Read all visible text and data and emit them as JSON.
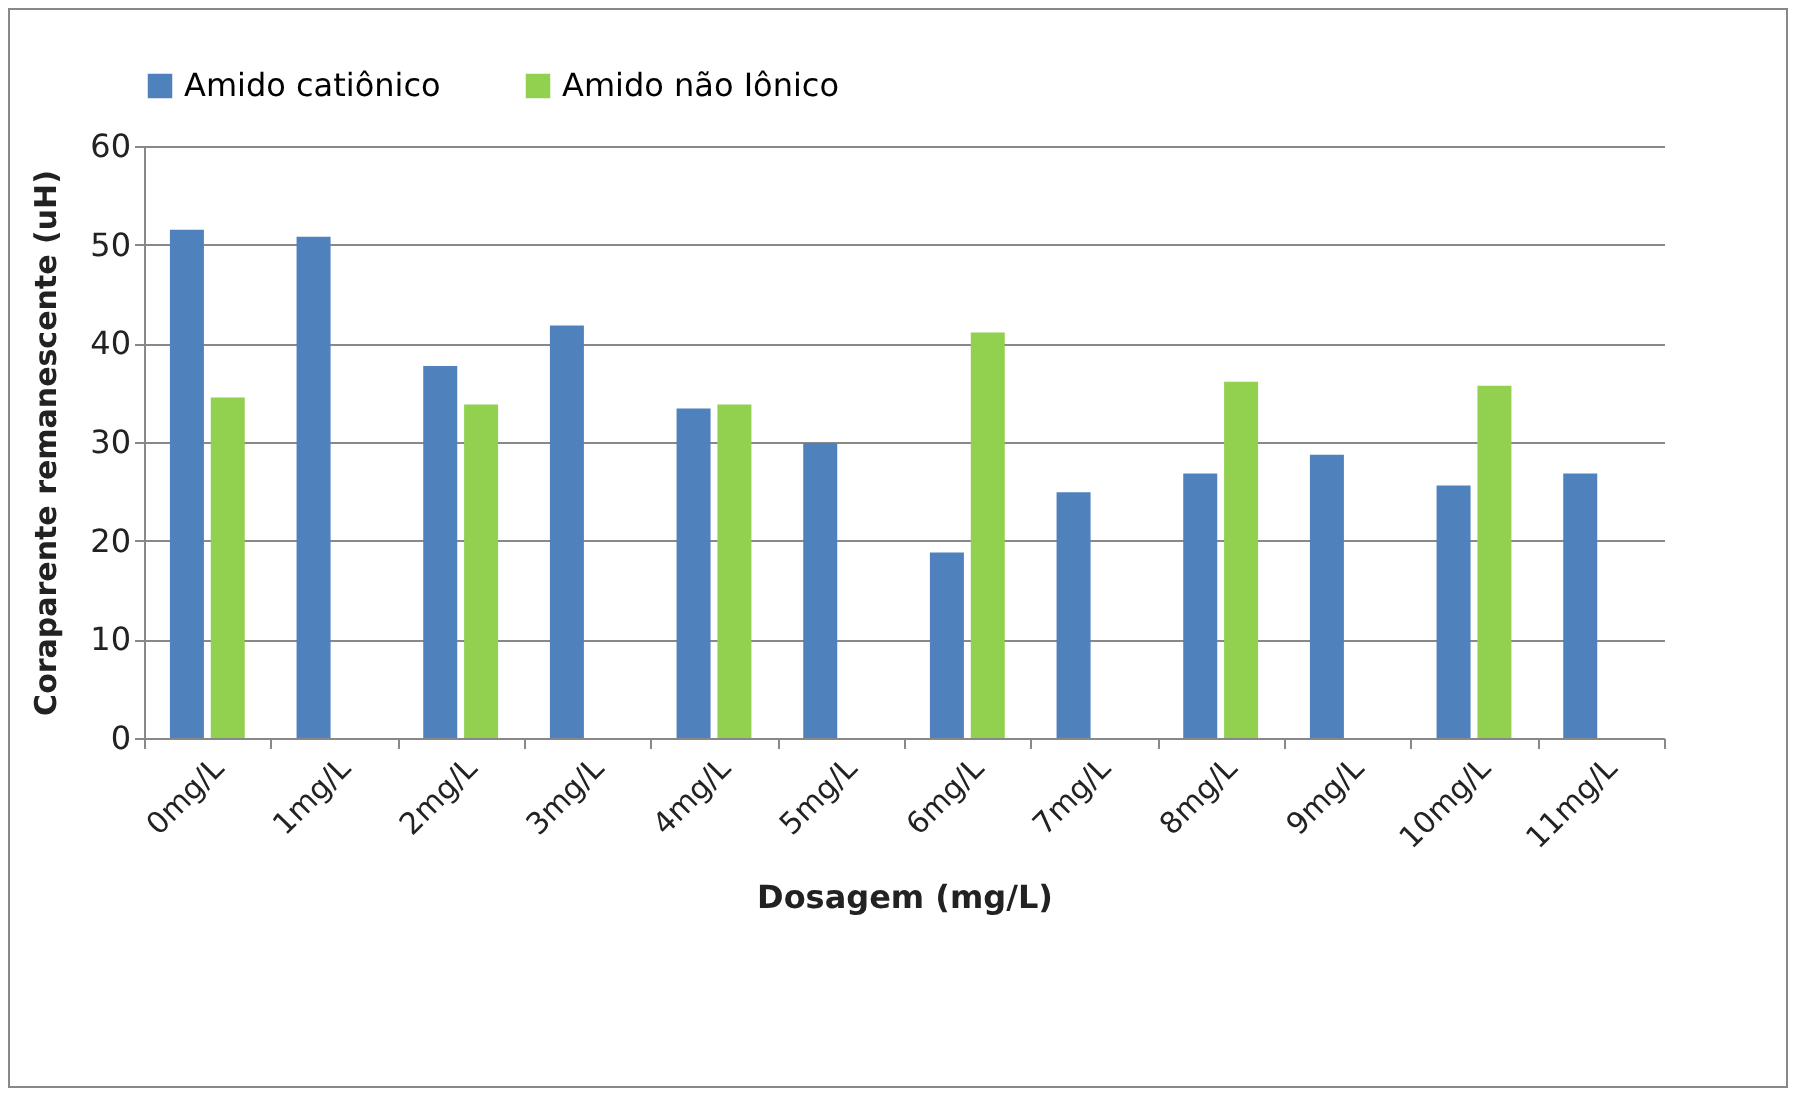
{
  "chart_data": {
    "type": "bar",
    "xlabel": "Dosagem (mg/L)",
    "ylabel": "Coraparente remanescente (uH)",
    "categories": [
      "0mg/L",
      "1mg/L",
      "2mg/L",
      "3mg/L",
      "4mg/L",
      "5mg/L",
      "6mg/L",
      "7mg/L",
      "8mg/L",
      "9mg/L",
      "10mg/L",
      "11mg/L"
    ],
    "series": [
      {
        "name": "Amido catiônico",
        "color": "#4f81bd",
        "values": [
          51.5,
          50.8,
          37.7,
          41.8,
          33.4,
          29.9,
          18.8,
          24.9,
          26.8,
          28.7,
          25.6,
          26.8
        ]
      },
      {
        "name": "Amido não Iônico",
        "color": "#92d050",
        "values": [
          34.5,
          null,
          33.8,
          null,
          33.8,
          null,
          41.1,
          null,
          36.1,
          null,
          35.7,
          null
        ]
      }
    ],
    "ylim": [
      0,
      60
    ],
    "yticks": [
      0,
      10,
      20,
      30,
      40,
      50,
      60
    ],
    "grid": "y",
    "legend": "top"
  }
}
